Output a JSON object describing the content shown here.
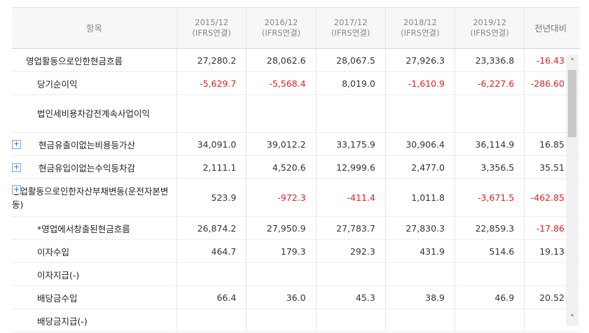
{
  "header": {
    "item": "항목",
    "periods": [
      {
        "year": "2015/12",
        "basis": "(IFRS연결)"
      },
      {
        "year": "2016/12",
        "basis": "(IFRS연결)"
      },
      {
        "year": "2017/12",
        "basis": "(IFRS연결)"
      },
      {
        "year": "2018/12",
        "basis": "(IFRS연결)"
      },
      {
        "year": "2019/12",
        "basis": "(IFRS연결)"
      }
    ],
    "yoy": "전년대비"
  },
  "rows": [
    {
      "label": "영업활동으로인한현금흐름",
      "values": [
        "27,280.2",
        "28,062.6",
        "28,067.5",
        "27,926.3",
        "23,336.8"
      ],
      "yoy": "-16.43"
    },
    {
      "label": "당기순이익",
      "values": [
        "-5,629.7",
        "-5,568.4",
        "8,019.0",
        "-1,610.9",
        "-6,227.6"
      ],
      "yoy": "-286.60"
    },
    {
      "label": "법인세비용차감전계속사업이익",
      "values": [
        "",
        "",
        "",
        "",
        ""
      ],
      "yoy": ""
    },
    {
      "label": "현금유출이없는비용등가산",
      "values": [
        "34,091.0",
        "39,012.2",
        "33,175.9",
        "30,906.4",
        "36,114.9"
      ],
      "yoy": "16.85"
    },
    {
      "label": "현금유입이없는수익등차감",
      "values": [
        "2,111.1",
        "4,520.6",
        "12,999.6",
        "2,477.0",
        "3,356.5"
      ],
      "yoy": "35.51"
    },
    {
      "label": "영업활동으로인한자산부채변동(운전자본변동)",
      "values": [
        "523.9",
        "-972.3",
        "-411.4",
        "1,011.8",
        "-3,671.5"
      ],
      "yoy": "-462.85"
    },
    {
      "label": "*영업에서창출된현금흐름",
      "values": [
        "26,874.2",
        "27,950.9",
        "27,783.7",
        "27,830.3",
        "22,859.3"
      ],
      "yoy": "-17.86"
    },
    {
      "label": "이자수입",
      "values": [
        "464.7",
        "179.3",
        "292.3",
        "431.9",
        "514.6"
      ],
      "yoy": "19.13"
    },
    {
      "label": "이자지급(-)",
      "values": [
        "",
        "",
        "",
        "",
        ""
      ],
      "yoy": ""
    },
    {
      "label": "배당금수입",
      "values": [
        "66.4",
        "36.0",
        "45.3",
        "38.9",
        "46.9"
      ],
      "yoy": "20.52"
    },
    {
      "label": "배당금지급(-)",
      "values": [
        "",
        "",
        "",
        "",
        ""
      ],
      "yoy": ""
    }
  ],
  "icons": {
    "expand": "plus-icon",
    "scroll_up": "chevron-up-icon",
    "scroll_down": "chevron-down-icon"
  },
  "colors": {
    "negative": "#e0211f",
    "expand_border": "#7ea3d6"
  }
}
